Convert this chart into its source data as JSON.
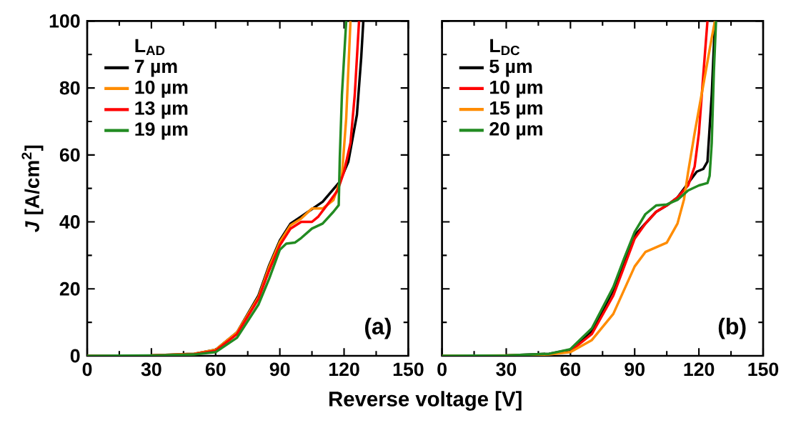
{
  "chart_data": [
    {
      "type": "line",
      "ylabel": "*J* [A/cm$^{2}$]",
      "xlabel": "Reverse voltage [V]",
      "legend_title": "L$_{AD}$",
      "legend": "top left",
      "annotations": [
        "(a)"
      ],
      "marker": "none",
      "line_style": "solid",
      "xlim": [
        0,
        150
      ],
      "ylim": [
        0,
        100
      ],
      "xticks": [
        0,
        30,
        60,
        90,
        120,
        150
      ],
      "yticks": [
        0,
        20,
        40,
        60,
        80,
        100
      ],
      "series": [
        {
          "name": "7 µm",
          "color": "#000000",
          "x": [
            0,
            30,
            50,
            60,
            70,
            80,
            85,
            90,
            95,
            100,
            110,
            118,
            122,
            126,
            128,
            129
          ],
          "values": [
            0,
            0.1,
            0.6,
            1.8,
            7,
            18,
            27,
            34.5,
            39.5,
            41.6,
            46,
            52,
            58,
            72,
            89,
            100
          ]
        },
        {
          "name": "10 µm",
          "color": "#ff8c00",
          "x": [
            0,
            30,
            50,
            60,
            70,
            80,
            85,
            90,
            95,
            100,
            105,
            110,
            115,
            119,
            121,
            123
          ],
          "values": [
            0,
            0.1,
            0.6,
            1.8,
            7,
            17.5,
            26.5,
            34,
            39,
            41,
            44,
            44,
            46.5,
            53.7,
            71,
            100
          ]
        },
        {
          "name": "13 µm",
          "color": "#ff0000",
          "x": [
            0,
            30,
            50,
            60,
            70,
            80,
            85,
            90,
            95,
            100,
            105,
            108,
            112,
            117,
            120,
            123,
            125,
            127
          ],
          "values": [
            0,
            0.1,
            0.5,
            1.5,
            6.5,
            17,
            25.5,
            33,
            38,
            40,
            40,
            41.6,
            45,
            49.4,
            55,
            63.6,
            78,
            100
          ]
        },
        {
          "name": "19 µm",
          "color": "#228b22",
          "x": [
            0,
            30,
            50,
            60,
            70,
            80,
            85,
            90,
            93,
            97,
            100,
            105,
            110,
            115,
            117.5,
            118,
            119,
            121
          ],
          "values": [
            0,
            0.1,
            0.4,
            1.1,
            5.4,
            15.3,
            23,
            31.7,
            33.5,
            33.8,
            35.2,
            38,
            39.5,
            43,
            45,
            59,
            78,
            100
          ]
        }
      ]
    },
    {
      "type": "line",
      "legend_title": "L$_{DC}$",
      "legend": "top left",
      "annotations": [
        "(b)"
      ],
      "marker": "none",
      "line_style": "solid",
      "tick_labels": "x",
      "xlim": [
        0,
        150
      ],
      "ylim": [
        0,
        100
      ],
      "xticks": [
        0,
        30,
        60,
        90,
        120,
        150
      ],
      "yticks": [
        0,
        20,
        40,
        60,
        80,
        100
      ],
      "series": [
        {
          "name": "5 µm",
          "color": "#000000",
          "x": [
            0,
            30,
            50,
            60,
            70,
            80,
            85,
            90,
            95,
            100,
            105,
            110,
            115,
            119,
            122,
            124,
            126,
            127.5
          ],
          "values": [
            0,
            0.1,
            0.6,
            1.8,
            7.5,
            19.6,
            28,
            36,
            39.5,
            43,
            44.9,
            47.3,
            51.6,
            55,
            55.8,
            58,
            78,
            100
          ]
        },
        {
          "name": "10 µm",
          "color": "#ff0000",
          "x": [
            60,
            70,
            80,
            85,
            90,
            95,
            100,
            105,
            110,
            115,
            118,
            120,
            122,
            124
          ],
          "values": [
            1.4,
            6.5,
            18,
            26.5,
            35,
            39.5,
            43,
            44.9,
            47.3,
            50.9,
            56.5,
            66.5,
            83.5,
            100
          ]
        },
        {
          "name": "15 µm",
          "color": "#ff8c00",
          "x": [
            0,
            30,
            50,
            60,
            70,
            80,
            85,
            90,
            95,
            100,
            105,
            110,
            113,
            115,
            118,
            122,
            126,
            127.5
          ],
          "values": [
            0,
            0.1,
            0.4,
            1.1,
            4.7,
            12.5,
            19.6,
            26.7,
            31,
            32.4,
            33.8,
            39.5,
            46.6,
            55,
            66.5,
            80.7,
            95,
            100
          ]
        },
        {
          "name": "20 µm",
          "color": "#228b22",
          "x": [
            0,
            30,
            50,
            60,
            70,
            80,
            85,
            90,
            95,
            100,
            105,
            110,
            115,
            120,
            124,
            125,
            126,
            127,
            128
          ],
          "values": [
            0,
            0.1,
            0.6,
            2,
            8.2,
            20.5,
            29,
            37,
            42.3,
            44.9,
            45.2,
            46.6,
            49.4,
            50.9,
            51.6,
            53.7,
            63.6,
            85,
            100
          ]
        }
      ]
    }
  ]
}
